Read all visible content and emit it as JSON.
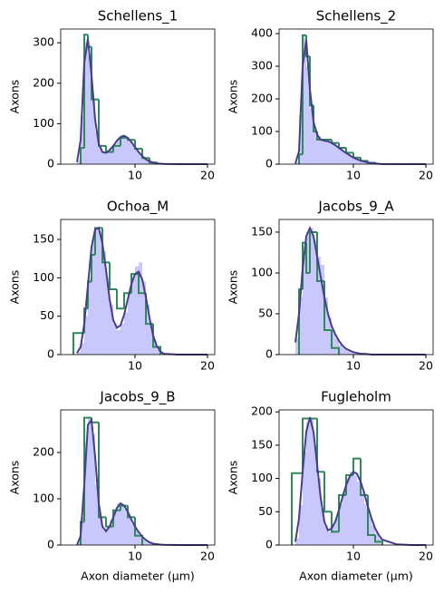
{
  "chart_data": [
    {
      "type": "histogram",
      "title": "Schellens_1",
      "ylabel": "Axons",
      "xlim": [
        -0.25,
        21
      ],
      "xticks": [
        10,
        20
      ],
      "ylim": [
        0,
        334
      ],
      "yticks": [
        0,
        100,
        200,
        300
      ],
      "fine": {
        "color": "#c8c8fc",
        "bins": [
          2,
          2.5,
          3,
          3.5,
          4,
          4.5,
          5,
          5.5,
          6,
          6.5,
          7,
          7.5,
          8,
          8.5,
          9,
          9.5,
          10,
          10.5,
          11,
          11.5,
          12,
          12.5,
          13,
          13.5,
          14
        ],
        "counts": [
          10,
          120,
          300,
          270,
          160,
          80,
          40,
          28,
          30,
          40,
          50,
          62,
          72,
          68,
          60,
          48,
          36,
          25,
          15,
          9,
          5,
          3,
          1,
          1
        ]
      },
      "step": {
        "color": "#2e8b57",
        "bins": [
          2.5,
          3,
          3.5,
          4,
          5,
          6,
          7,
          8,
          9,
          10,
          11,
          12,
          13
        ],
        "counts": [
          40,
          320,
          290,
          160,
          45,
          30,
          45,
          65,
          60,
          38,
          15,
          4
        ]
      },
      "curve": {
        "color": "#483d8b",
        "x": [
          2,
          2.5,
          3,
          3.5,
          4,
          4.5,
          5,
          5.5,
          6,
          6.5,
          7,
          7.5,
          8,
          8.5,
          9,
          9.5,
          10,
          10.5,
          11,
          11.5,
          12,
          12.5,
          13,
          13.5,
          14,
          16,
          18,
          20
        ],
        "values": [
          5,
          60,
          250,
          310,
          220,
          110,
          50,
          30,
          28,
          35,
          45,
          58,
          67,
          70,
          65,
          55,
          42,
          30,
          20,
          12,
          7,
          4,
          2,
          1,
          0.5,
          0,
          0,
          0
        ]
      }
    },
    {
      "type": "histogram",
      "title": "Schellens_2",
      "ylabel": "Axons",
      "xlim": [
        -0.25,
        21
      ],
      "xticks": [
        10,
        20
      ],
      "ylim": [
        0,
        414
      ],
      "yticks": [
        0,
        100,
        200,
        300,
        400
      ],
      "fine": {
        "color": "#c8c8fc",
        "bins": [
          2,
          2.5,
          3,
          3.5,
          4,
          4.5,
          5,
          5.5,
          6,
          6.5,
          7,
          7.5,
          8,
          8.5,
          9,
          9.5,
          10,
          10.5,
          11,
          11.5,
          12,
          12.5,
          13,
          13.5,
          14
        ],
        "counts": [
          5,
          150,
          390,
          300,
          170,
          110,
          85,
          75,
          72,
          68,
          62,
          55,
          47,
          40,
          32,
          25,
          20,
          14,
          10,
          7,
          4,
          3,
          1,
          1
        ]
      },
      "step": {
        "color": "#2e8b57",
        "bins": [
          2.5,
          3,
          3.5,
          4,
          4.5,
          5,
          6,
          7,
          8,
          9,
          10,
          11,
          12,
          13
        ],
        "counts": [
          30,
          395,
          330,
          180,
          100,
          75,
          75,
          65,
          50,
          35,
          20,
          10,
          4
        ]
      },
      "curve": {
        "color": "#483d8b",
        "x": [
          2,
          2.5,
          3,
          3.5,
          4,
          4.5,
          5,
          5.5,
          6,
          6.5,
          7,
          7.5,
          8,
          8.5,
          9,
          9.5,
          10,
          10.5,
          11,
          11.5,
          12,
          12.5,
          13,
          13.5,
          14,
          16,
          18,
          20
        ],
        "values": [
          2,
          40,
          300,
          380,
          230,
          130,
          90,
          75,
          72,
          70,
          65,
          58,
          50,
          42,
          34,
          27,
          20,
          15,
          11,
          8,
          5,
          3,
          2,
          1,
          0.5,
          0,
          0,
          0
        ]
      }
    },
    {
      "type": "histogram",
      "title": "Ochoa_M",
      "ylabel": "Axons",
      "xlim": [
        -0.25,
        21
      ],
      "xticks": [
        10,
        20
      ],
      "ylim": [
        0,
        176
      ],
      "yticks": [
        0,
        50,
        100,
        150
      ],
      "fine": {
        "color": "#c8c8fc",
        "bins": [
          2,
          2.5,
          3,
          3.5,
          4,
          4.5,
          5,
          5.5,
          6,
          6.5,
          7,
          7.5,
          8,
          8.5,
          9,
          9.5,
          10,
          10.5,
          11,
          11.5,
          12,
          12.5,
          13,
          13.5,
          14
        ],
        "counts": [
          3,
          15,
          50,
          100,
          150,
          165,
          160,
          135,
          100,
          65,
          40,
          32,
          40,
          55,
          80,
          100,
          115,
          120,
          95,
          65,
          40,
          18,
          6,
          2
        ]
      },
      "step": {
        "color": "#2e8b57",
        "bins": [
          1.5,
          3,
          3.5,
          4,
          4.5,
          5.5,
          6.5,
          7.5,
          8.5,
          9.5,
          10.5,
          11.5,
          12.5,
          13.5
        ],
        "counts": [
          28,
          60,
          95,
          130,
          165,
          120,
          85,
          60,
          80,
          105,
          80,
          40,
          10
        ]
      },
      "curve": {
        "color": "#483d8b",
        "x": [
          2,
          2.5,
          3,
          3.5,
          4,
          4.5,
          5,
          5.5,
          6,
          6.5,
          7,
          7.5,
          8,
          8.5,
          9,
          9.5,
          10,
          10.5,
          11,
          11.5,
          12,
          12.5,
          13,
          13.5,
          14,
          16,
          18,
          20
        ],
        "values": [
          2,
          10,
          40,
          90,
          140,
          163,
          165,
          145,
          110,
          72,
          45,
          35,
          38,
          52,
          72,
          92,
          105,
          108,
          98,
          75,
          48,
          25,
          11,
          4,
          1,
          0,
          0,
          0
        ]
      }
    },
    {
      "type": "histogram",
      "title": "Jacobs_9_A",
      "ylabel": "Axons",
      "xlim": [
        -0.25,
        21
      ],
      "xticks": [
        10,
        20
      ],
      "ylim": [
        0,
        165.5
      ],
      "yticks": [
        0,
        50,
        100,
        150
      ],
      "fine": {
        "color": "#c8c8fc",
        "bins": [
          2,
          2.5,
          3,
          3.5,
          4,
          4.5,
          5,
          5.5,
          6,
          6.5,
          7,
          7.5,
          8,
          8.5,
          9,
          9.5,
          10,
          10.5,
          11,
          11.5,
          12,
          12.5,
          13,
          13.5,
          14
        ],
        "counts": [
          20,
          70,
          120,
          150,
          155,
          140,
          120,
          110,
          70,
          45,
          30,
          20,
          12,
          8,
          5,
          3,
          2,
          1,
          1,
          0,
          0,
          0,
          0,
          0
        ]
      },
      "step": {
        "color": "#2e8b57",
        "bins": [
          2.5,
          3,
          3.5,
          4,
          5,
          6,
          7,
          8
        ],
        "counts": [
          80,
          137,
          100,
          150,
          90,
          30,
          8
        ]
      },
      "curve": {
        "color": "#483d8b",
        "x": [
          2,
          2.5,
          3,
          3.5,
          4,
          4.5,
          5,
          5.5,
          6,
          6.5,
          7,
          7.5,
          8,
          8.5,
          9,
          9.5,
          10,
          10.5,
          11,
          11.5,
          12,
          12.5,
          13,
          13.5,
          14,
          16,
          18,
          20
        ],
        "values": [
          15,
          50,
          105,
          145,
          155,
          145,
          120,
          95,
          70,
          50,
          35,
          25,
          17,
          11,
          7,
          5,
          3,
          2,
          1,
          1,
          0.5,
          0,
          0,
          0,
          0,
          0,
          0,
          0
        ]
      }
    },
    {
      "type": "histogram",
      "title": "Jacobs_9_B",
      "ylabel": "Axons",
      "xlabel": "Axon diameter (µm)",
      "xlim": [
        -0.25,
        21
      ],
      "xticks": [
        10,
        20
      ],
      "ylim": [
        0,
        292
      ],
      "yticks": [
        0,
        100,
        200
      ],
      "fine": {
        "color": "#c8c8fc",
        "bins": [
          2,
          2.5,
          3,
          3.5,
          4,
          4.5,
          5,
          5.5,
          6,
          6.5,
          7,
          7.5,
          8,
          8.5,
          9,
          9.5,
          10,
          10.5,
          11,
          11.5,
          12,
          12.5,
          13,
          13.5,
          14
        ],
        "counts": [
          5,
          60,
          220,
          275,
          240,
          130,
          60,
          35,
          35,
          55,
          75,
          90,
          88,
          78,
          60,
          45,
          32,
          20,
          12,
          7,
          4,
          2,
          1,
          0
        ]
      },
      "step": {
        "color": "#2e8b57",
        "bins": [
          2.5,
          3,
          4,
          5,
          6,
          7,
          8,
          9,
          10,
          11
        ],
        "counts": [
          50,
          275,
          265,
          60,
          40,
          75,
          85,
          60,
          20
        ]
      },
      "curve": {
        "color": "#483d8b",
        "x": [
          2,
          2.5,
          3,
          3.5,
          4,
          4.5,
          5,
          5.5,
          6,
          6.5,
          7,
          7.5,
          8,
          8.5,
          9,
          9.5,
          10,
          10.5,
          11,
          11.5,
          12,
          12.5,
          13,
          13.5,
          14,
          16,
          18,
          20
        ],
        "values": [
          0,
          20,
          130,
          260,
          270,
          190,
          90,
          40,
          30,
          40,
          60,
          80,
          90,
          85,
          72,
          55,
          40,
          28,
          18,
          11,
          6,
          3,
          2,
          1,
          0.5,
          0,
          0,
          0
        ]
      }
    },
    {
      "type": "histogram",
      "title": "Fugleholm",
      "ylabel": "Axons",
      "xlabel": "Axon diameter (µm)",
      "xlim": [
        -0.25,
        21
      ],
      "xticks": [
        10,
        20
      ],
      "ylim": [
        0,
        203
      ],
      "yticks": [
        0,
        50,
        100,
        150,
        200
      ],
      "fine": {
        "color": "#c8c8fc",
        "bins": [
          2,
          2.5,
          3,
          3.5,
          4,
          4.5,
          5,
          5.5,
          6,
          6.5,
          7,
          7.5,
          8,
          8.5,
          9,
          9.5,
          10,
          10.5,
          11,
          11.5,
          12,
          12.5,
          13,
          13.5,
          14
        ],
        "counts": [
          10,
          60,
          140,
          185,
          190,
          150,
          100,
          55,
          28,
          20,
          30,
          40,
          60,
          80,
          100,
          110,
          105,
          95,
          80,
          62,
          45,
          30,
          18,
          10
        ]
      },
      "step": {
        "color": "#2e8b57",
        "bins": [
          1.5,
          3,
          4,
          5,
          6,
          7,
          8,
          9,
          10,
          11,
          12,
          13,
          14
        ],
        "counts": [
          108,
          190,
          190,
          110,
          50,
          20,
          75,
          105,
          130,
          75,
          15,
          5
        ]
      },
      "curve": {
        "color": "#483d8b",
        "x": [
          2,
          2.5,
          3,
          3.5,
          4,
          4.5,
          5,
          5.5,
          6,
          6.5,
          7,
          7.5,
          8,
          8.5,
          9,
          9.5,
          10,
          10.5,
          11,
          11.5,
          12,
          12.5,
          13,
          13.5,
          14,
          16,
          18,
          20
        ],
        "values": [
          5,
          40,
          110,
          170,
          192,
          170,
          120,
          70,
          35,
          22,
          25,
          35,
          52,
          72,
          90,
          103,
          110,
          107,
          95,
          78,
          58,
          40,
          25,
          15,
          8,
          1,
          0,
          0
        ]
      }
    }
  ]
}
